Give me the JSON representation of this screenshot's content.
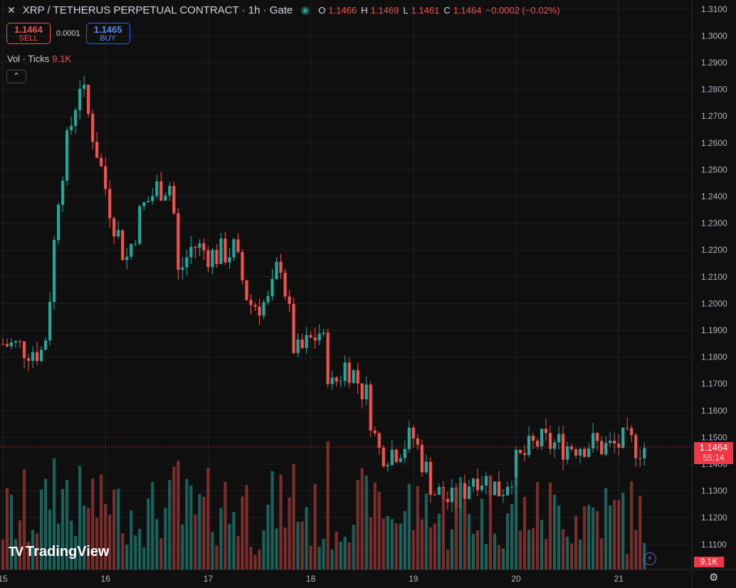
{
  "header": {
    "close_icon": "close-icon",
    "symbol": "XRP / TETHERUS PERPETUAL CONTRACT · 1h · Gate",
    "status_color": "#26a69a",
    "ohlc": {
      "o_label": "O",
      "o": "1.1466",
      "h_label": "H",
      "h": "1.1469",
      "l_label": "L",
      "l": "1.1461",
      "c_label": "C",
      "c": "1.1464",
      "change": "−0.0002 (−0.02%)"
    }
  },
  "trade": {
    "sell_price": "1.1464",
    "sell_label": "SELL",
    "spread": "0.0001",
    "buy_price": "1.1465",
    "buy_label": "BUY"
  },
  "volume_legend": {
    "label": "Vol · Ticks",
    "value": "9.1K"
  },
  "collapse_icon": "chevron-up-icon",
  "logo": {
    "text": "TradingView",
    "mark": "TV"
  },
  "price_tag": {
    "price": "1.1464",
    "countdown": "55:14"
  },
  "volume_tag": "9.1K",
  "bolt_icon": "lightning-icon",
  "gear_icon": "gear-icon",
  "colors": {
    "up": "#26a69a",
    "down": "#ef5350",
    "background": "#0f0f0f",
    "grid": "#1f1f1f"
  },
  "chart_data": {
    "type": "candlestick",
    "interval": "1h",
    "y_ticks": [
      "1.3100",
      "1.3000",
      "1.2900",
      "1.2800",
      "1.2700",
      "1.2600",
      "1.2500",
      "1.2400",
      "1.2300",
      "1.2200",
      "1.2100",
      "1.2000",
      "1.1900",
      "1.1800",
      "1.1700",
      "1.1600",
      "1.1500",
      "1.1400",
      "1.1300",
      "1.1200",
      "1.1100"
    ],
    "ylim": [
      1.1,
      1.31
    ],
    "x_labels": [
      "15",
      "16",
      "17",
      "18",
      "19",
      "20",
      "21"
    ],
    "last_price": 1.1464,
    "keypoints": [
      {
        "day": 15.0,
        "price": 1.185
      },
      {
        "day": 15.4,
        "price": 1.182
      },
      {
        "day": 15.45,
        "price": 1.2
      },
      {
        "day": 15.55,
        "price": 1.245
      },
      {
        "day": 15.75,
        "price": 1.283
      },
      {
        "day": 15.9,
        "price": 1.26
      },
      {
        "day": 16.05,
        "price": 1.235
      },
      {
        "day": 16.2,
        "price": 1.216
      },
      {
        "day": 16.35,
        "price": 1.235
      },
      {
        "day": 16.5,
        "price": 1.243
      },
      {
        "day": 16.65,
        "price": 1.245
      },
      {
        "day": 16.7,
        "price": 1.21
      },
      {
        "day": 16.85,
        "price": 1.222
      },
      {
        "day": 17.05,
        "price": 1.218
      },
      {
        "day": 17.25,
        "price": 1.22
      },
      {
        "day": 17.4,
        "price": 1.2
      },
      {
        "day": 17.6,
        "price": 1.2
      },
      {
        "day": 17.7,
        "price": 1.218
      },
      {
        "day": 17.85,
        "price": 1.18
      },
      {
        "day": 18.1,
        "price": 1.19
      },
      {
        "day": 18.2,
        "price": 1.168
      },
      {
        "day": 18.35,
        "price": 1.178
      },
      {
        "day": 18.55,
        "price": 1.165
      },
      {
        "day": 18.65,
        "price": 1.145
      },
      {
        "day": 18.8,
        "price": 1.145
      },
      {
        "day": 19.0,
        "price": 1.15
      },
      {
        "day": 19.2,
        "price": 1.13
      },
      {
        "day": 19.4,
        "price": 1.125
      },
      {
        "day": 19.6,
        "price": 1.137
      },
      {
        "day": 19.85,
        "price": 1.13
      },
      {
        "day": 20.0,
        "price": 1.14
      },
      {
        "day": 20.2,
        "price": 1.148
      },
      {
        "day": 20.5,
        "price": 1.147
      },
      {
        "day": 20.7,
        "price": 1.148
      },
      {
        "day": 20.9,
        "price": 1.146
      },
      {
        "day": 21.05,
        "price": 1.148
      },
      {
        "day": 21.25,
        "price": 1.1464
      }
    ]
  }
}
